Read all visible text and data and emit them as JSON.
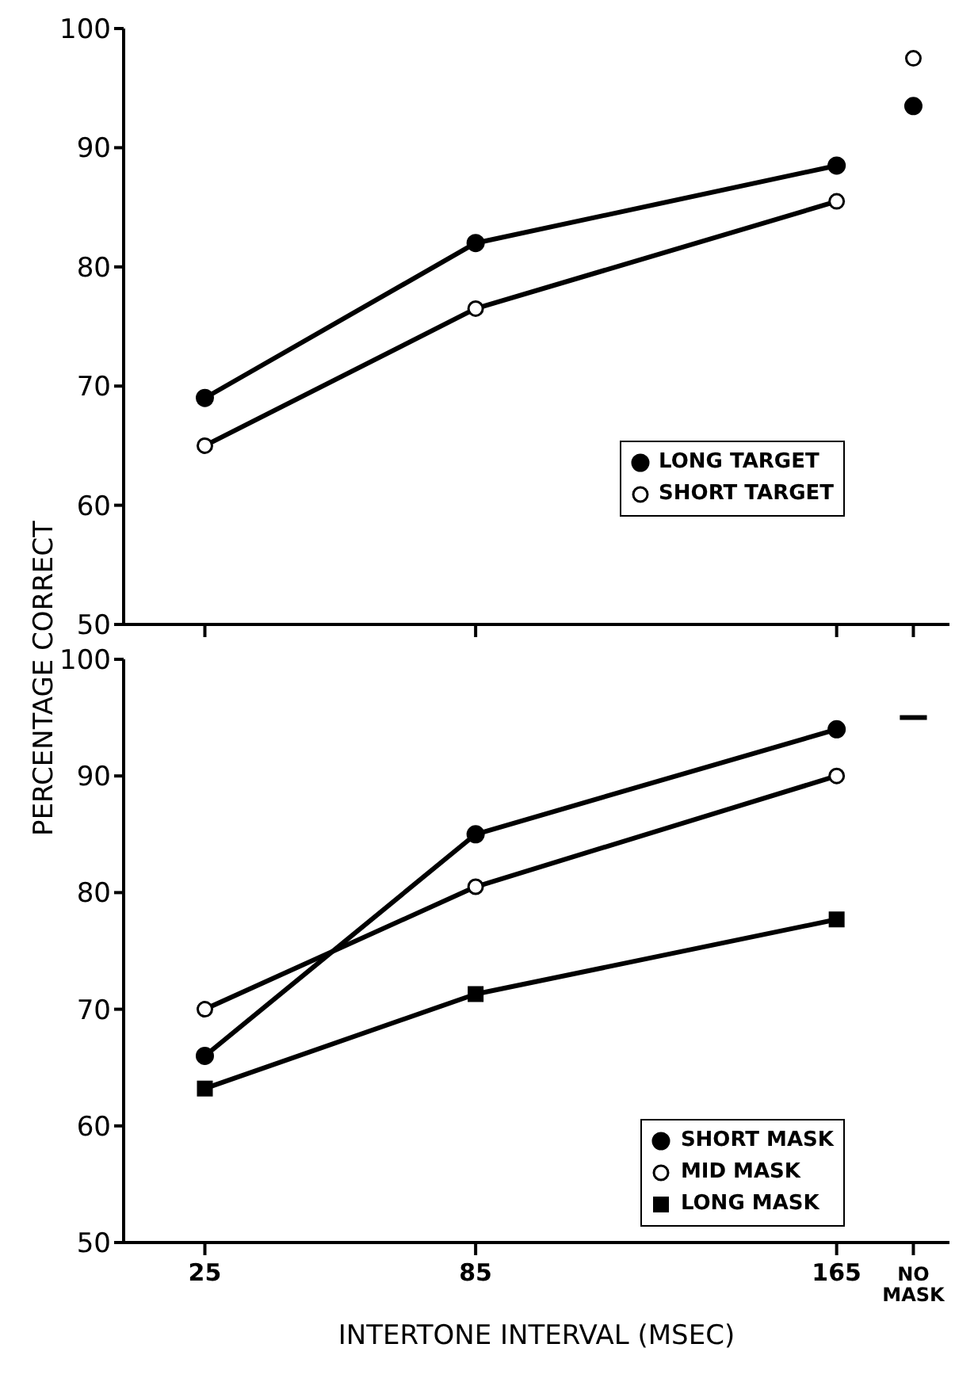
{
  "chart_data": [
    {
      "type": "line",
      "ylabel": "PERCENTAGE CORRECT",
      "xlim": [
        7,
        190
      ],
      "xticks": [
        25,
        85,
        165,
        {
          "value": 182,
          "label": null
        }
      ],
      "ylim": [
        50,
        100
      ],
      "yticks": [
        50,
        60,
        70,
        80,
        90,
        100
      ],
      "tick_labels": "y",
      "legend": "bottom right",
      "grid": false,
      "line_style": "solid",
      "series": [
        {
          "name": "LONG TARGET",
          "color": "#000000",
          "marker": "circle",
          "x": [
            25,
            85,
            165
          ],
          "values": [
            69,
            82,
            88.5
          ]
        },
        {
          "name": "SHORT TARGET",
          "color": "#000000",
          "marker": "open circle",
          "x": [
            25,
            85,
            165
          ],
          "values": [
            65,
            76.5,
            85.5
          ]
        },
        {
          "type": "scatter",
          "color": "#000000",
          "marker": "circle",
          "x": [
            182
          ],
          "values": [
            93.5
          ]
        },
        {
          "type": "scatter",
          "color": "#000000",
          "marker": "open circle",
          "x": [
            182
          ],
          "values": [
            97.5
          ]
        }
      ]
    },
    {
      "type": "line",
      "xlabel": "INTERTONE INTERVAL (MSEC)",
      "xlim": [
        7,
        190
      ],
      "xticks": [
        25,
        85,
        165,
        {
          "value": 182,
          "label": "NO MASK"
        }
      ],
      "ylim": [
        50,
        100
      ],
      "yticks": [
        50,
        60,
        70,
        80,
        90,
        100
      ],
      "legend": "bottom right",
      "grid": false,
      "line_style": "solid",
      "series": [
        {
          "name": "SHORT MASK",
          "color": "#000000",
          "marker": "circle",
          "x": [
            25,
            85,
            165
          ],
          "values": [
            66,
            85,
            94
          ]
        },
        {
          "name": "MID MASK",
          "color": "#000000",
          "marker": "open circle",
          "x": [
            25,
            85,
            165
          ],
          "values": [
            70,
            80.5,
            90
          ]
        },
        {
          "name": "LONG MASK",
          "color": "#000000",
          "marker": "square",
          "x": [
            25,
            85,
            165
          ],
          "values": [
            63.2,
            71.3,
            77.7
          ]
        },
        {
          "type": "line",
          "color": "#000000",
          "marker": "none",
          "x": [
            179,
            185
          ],
          "values": [
            95,
            95
          ]
        }
      ]
    }
  ]
}
